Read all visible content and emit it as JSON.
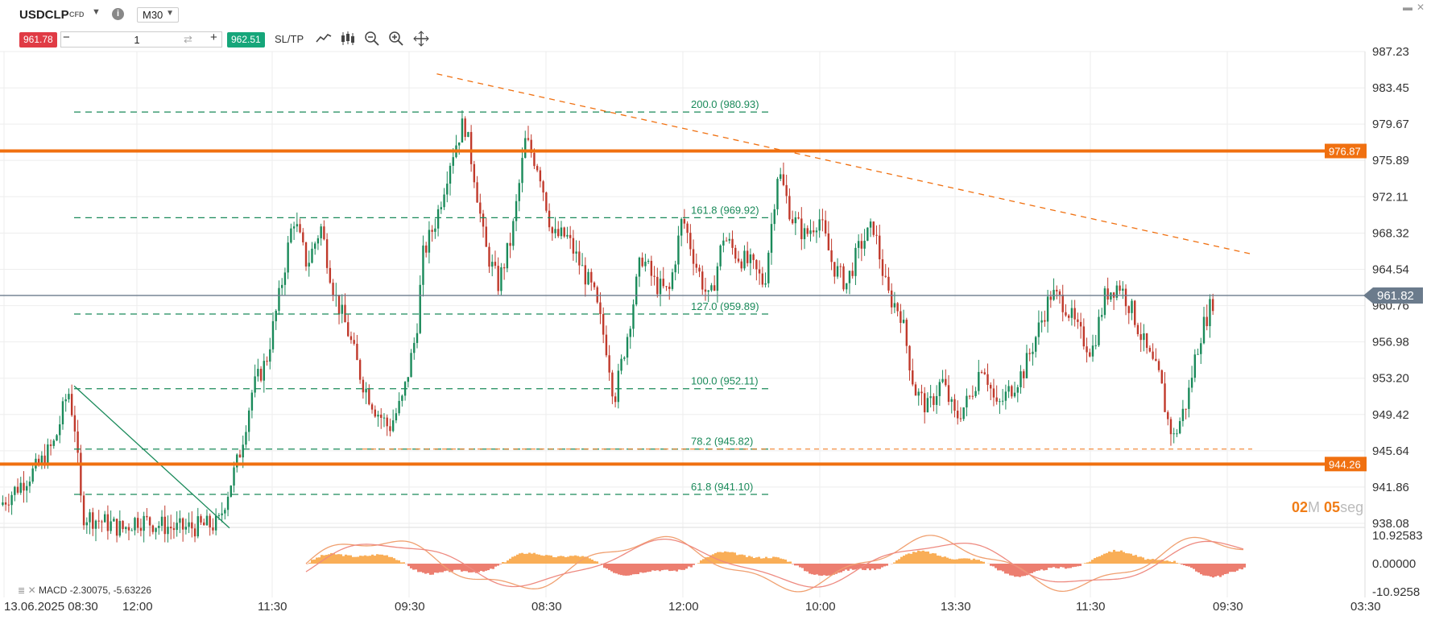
{
  "symbol": "USDCLP",
  "symbol_type": "CFD",
  "timeframe": "M30",
  "sell_price": "961.78",
  "buy_price": "962.51",
  "quantity": "1",
  "sltp_label": "SL/TP",
  "timer": {
    "minutes": "02",
    "m": "M",
    "seconds": "05",
    "seg": "seg"
  },
  "macd_label": "MACD -2.30075, -5.63226",
  "colors": {
    "up": "#1a8a5a",
    "down": "#c0392b",
    "level": "#f07010",
    "sell": "#e03b45",
    "buy": "#16a67a",
    "fib": "#1a8a5a"
  },
  "chart_data": {
    "type": "candlestick",
    "title": "",
    "xlabel": "",
    "ylabel": "",
    "ylim": [
      938.08,
      987.23
    ],
    "y_ticks": [
      "987.23",
      "983.45",
      "979.67",
      "975.89",
      "972.11",
      "968.32",
      "964.54",
      "960.76",
      "956.98",
      "953.20",
      "949.42",
      "945.64",
      "941.86",
      "938.08"
    ],
    "x_ticks": [
      "13.06.2025 08:30",
      "12:00",
      "11:30",
      "09:30",
      "08:30",
      "12:00",
      "10:00",
      "13:30",
      "11:30",
      "09:30",
      "03:30"
    ],
    "price_tags": {
      "resistance": "976.87",
      "support": "944.26",
      "current": "961.82"
    },
    "levels": [
      {
        "price": 976.87,
        "label": "976.87"
      },
      {
        "price": 944.26,
        "label": "944.26"
      }
    ],
    "current_price": 961.82,
    "fibonacci": [
      {
        "label": "200.0 (980.93)",
        "price": 980.93
      },
      {
        "label": "161.8 (969.92)",
        "price": 969.92
      },
      {
        "label": "127.0 (959.89)",
        "price": 959.89
      },
      {
        "label": "100.0 (952.11)",
        "price": 952.11
      },
      {
        "label": "78.2 (945.82)",
        "price": 945.82
      },
      {
        "label": "61.8 (941.10)",
        "price": 941.1
      }
    ],
    "trendline": [
      {
        "x": 0.32,
        "price": 984.9
      },
      {
        "x": 0.918,
        "price": 966.1
      }
    ],
    "close_path": [
      [
        0.0,
        940.0
      ],
      [
        0.028,
        944.0
      ],
      [
        0.04,
        946.5
      ],
      [
        0.05,
        952.0
      ],
      [
        0.055,
        948.0
      ],
      [
        0.06,
        939.0
      ],
      [
        0.09,
        937.5
      ],
      [
        0.1,
        938.5
      ],
      [
        0.13,
        937.5
      ],
      [
        0.16,
        938.0
      ],
      [
        0.165,
        940.5
      ],
      [
        0.175,
        945.0
      ],
      [
        0.185,
        952.0
      ],
      [
        0.195,
        955.0
      ],
      [
        0.205,
        962.0
      ],
      [
        0.215,
        970.0
      ],
      [
        0.225,
        965.0
      ],
      [
        0.235,
        969.0
      ],
      [
        0.245,
        962.0
      ],
      [
        0.255,
        958.0
      ],
      [
        0.265,
        953.0
      ],
      [
        0.275,
        950.0
      ],
      [
        0.285,
        948.0
      ],
      [
        0.295,
        951.0
      ],
      [
        0.305,
        958.0
      ],
      [
        0.31,
        966.0
      ],
      [
        0.32,
        970.0
      ],
      [
        0.33,
        976.0
      ],
      [
        0.34,
        980.0
      ],
      [
        0.348,
        974.0
      ],
      [
        0.355,
        967.0
      ],
      [
        0.365,
        963.0
      ],
      [
        0.375,
        968.0
      ],
      [
        0.385,
        978.0
      ],
      [
        0.395,
        975.0
      ],
      [
        0.405,
        968.0
      ],
      [
        0.415,
        968.0
      ],
      [
        0.425,
        965.0
      ],
      [
        0.435,
        962.0
      ],
      [
        0.445,
        956.0
      ],
      [
        0.45,
        951.0
      ],
      [
        0.46,
        958.0
      ],
      [
        0.47,
        966.0
      ],
      [
        0.48,
        963.0
      ],
      [
        0.49,
        962.0
      ],
      [
        0.5,
        970.0
      ],
      [
        0.51,
        965.0
      ],
      [
        0.52,
        961.0
      ],
      [
        0.53,
        968.0
      ],
      [
        0.54,
        966.0
      ],
      [
        0.55,
        965.0
      ],
      [
        0.56,
        963.0
      ],
      [
        0.57,
        975.0
      ],
      [
        0.58,
        970.0
      ],
      [
        0.59,
        968.0
      ],
      [
        0.6,
        970.0
      ],
      [
        0.61,
        965.0
      ],
      [
        0.62,
        963.0
      ],
      [
        0.63,
        967.0
      ],
      [
        0.64,
        969.0
      ],
      [
        0.65,
        962.0
      ],
      [
        0.66,
        960.0
      ],
      [
        0.67,
        952.0
      ],
      [
        0.68,
        950.0
      ],
      [
        0.69,
        953.0
      ],
      [
        0.7,
        949.0
      ],
      [
        0.71,
        951.0
      ],
      [
        0.72,
        955.0
      ],
      [
        0.73,
        950.0
      ],
      [
        0.74,
        952.0
      ],
      [
        0.75,
        954.0
      ],
      [
        0.76,
        958.0
      ],
      [
        0.77,
        962.0
      ],
      [
        0.78,
        961.0
      ],
      [
        0.79,
        958.0
      ],
      [
        0.8,
        956.0
      ],
      [
        0.81,
        962.0
      ],
      [
        0.82,
        963.0
      ],
      [
        0.83,
        960.0
      ],
      [
        0.84,
        956.0
      ],
      [
        0.85,
        953.0
      ],
      [
        0.855,
        949.0
      ],
      [
        0.86,
        947.0
      ],
      [
        0.87,
        951.0
      ],
      [
        0.875,
        955.0
      ],
      [
        0.88,
        958.0
      ],
      [
        0.885,
        960.0
      ],
      [
        0.89,
        961.8
      ]
    ]
  }
}
